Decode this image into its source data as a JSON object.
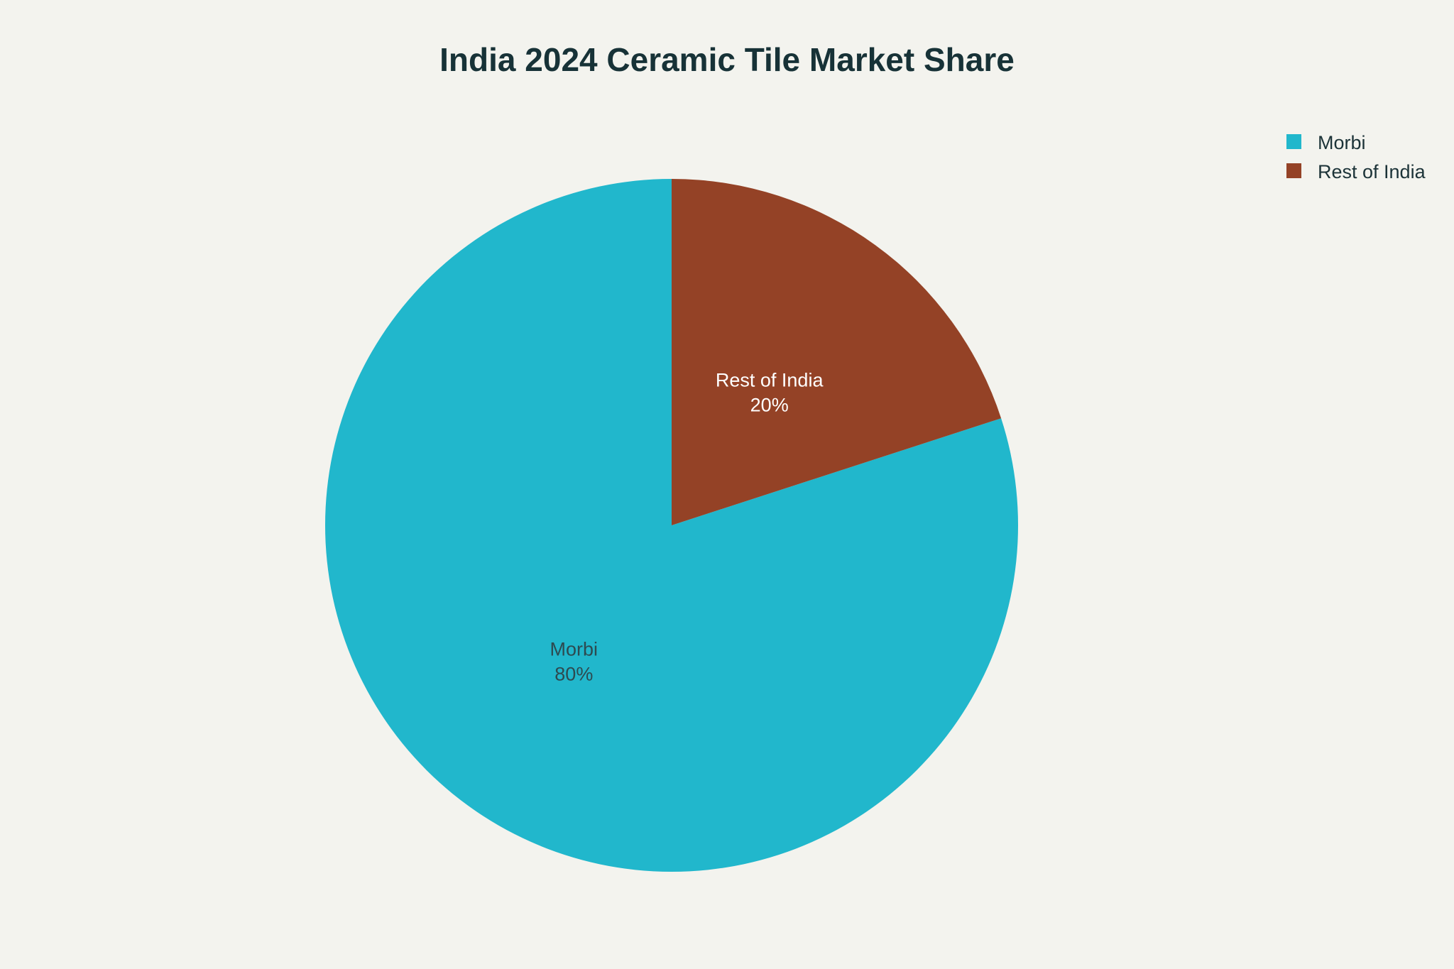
{
  "chart_data": {
    "type": "pie",
    "title": "India 2024 Ceramic Tile Market Share",
    "legend_position": "top-right",
    "slices": [
      {
        "label": "Morbi",
        "value": 80,
        "display": "80%",
        "color": "#21b7cc",
        "label_color": "#2d4a50"
      },
      {
        "label": "Rest of India",
        "value": 20,
        "display": "20%",
        "color": "#944226",
        "label_color": "#ffffff"
      }
    ]
  }
}
